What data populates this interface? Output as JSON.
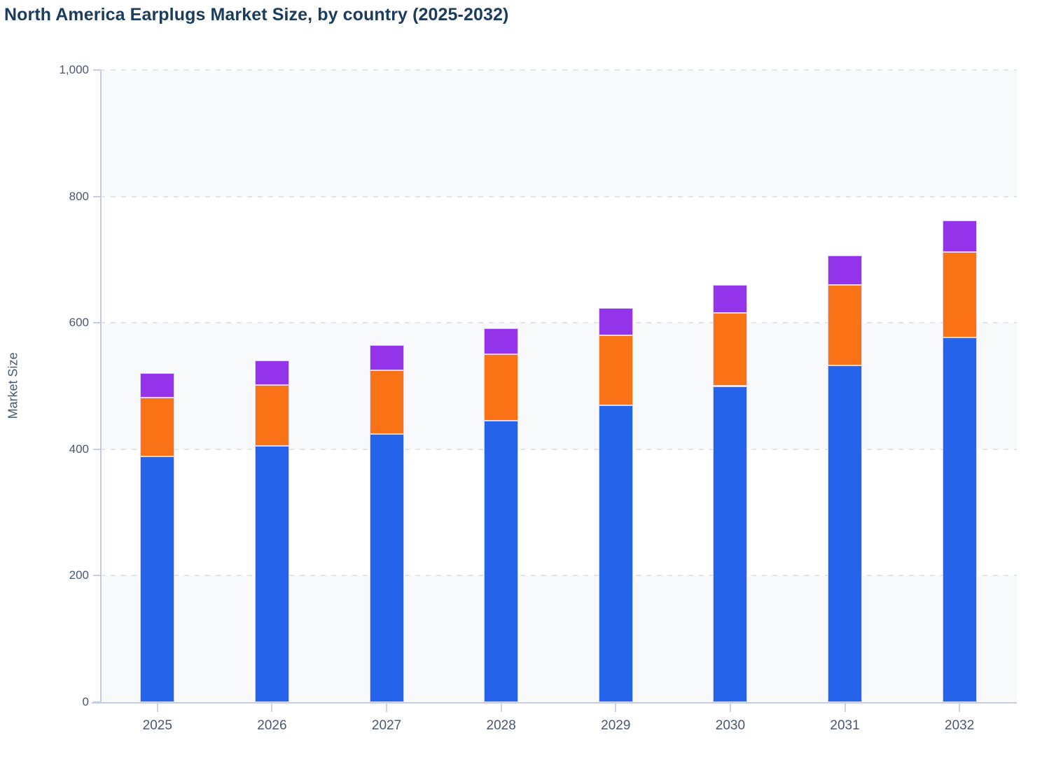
{
  "header": {
    "title": "North America Earplugs Market Size, by country (2025-2032)"
  },
  "chart_data": {
    "type": "bar",
    "stacked": true,
    "title": "North America Earplugs Market Size, by country (2025-2032)",
    "categories": [
      "2025",
      "2026",
      "2027",
      "2028",
      "2029",
      "2030",
      "2031",
      "2032"
    ],
    "series": [
      {
        "name": "series-blue",
        "color": "#2563eb",
        "values": [
          389,
          405,
          424,
          445,
          470,
          500,
          533,
          577
        ]
      },
      {
        "name": "series-orange",
        "color": "#f97316",
        "values": [
          93,
          97,
          101,
          105,
          110,
          116,
          127,
          135
        ]
      },
      {
        "name": "series-purple",
        "color": "#9333ea",
        "values": [
          38,
          38,
          40,
          41,
          43,
          44,
          46,
          50
        ]
      }
    ],
    "stack_totals": [
      520,
      540,
      565,
      591,
      623,
      660,
      706,
      762
    ],
    "xlabel": "",
    "ylabel": "Market Size",
    "ylim": [
      0,
      1000
    ],
    "yticks": [
      0,
      200,
      400,
      600,
      800,
      1000
    ],
    "ytick_labels": [
      "0",
      "200",
      "400",
      "600",
      "800",
      "1,000"
    ],
    "grid": "horizontal-dashed",
    "plot_bands": "alternating-light",
    "legend_position": "none"
  },
  "style": {
    "title_color": "#1c3c5f",
    "axis_text_color": "#4a5773",
    "axis_line_color": "#c7cce9",
    "gridline_color": "#e3e5ee",
    "band_color": "#f8f9fb",
    "segment_stroke": "rgba(235,232,252,0.85)",
    "background": "#ffffff"
  }
}
